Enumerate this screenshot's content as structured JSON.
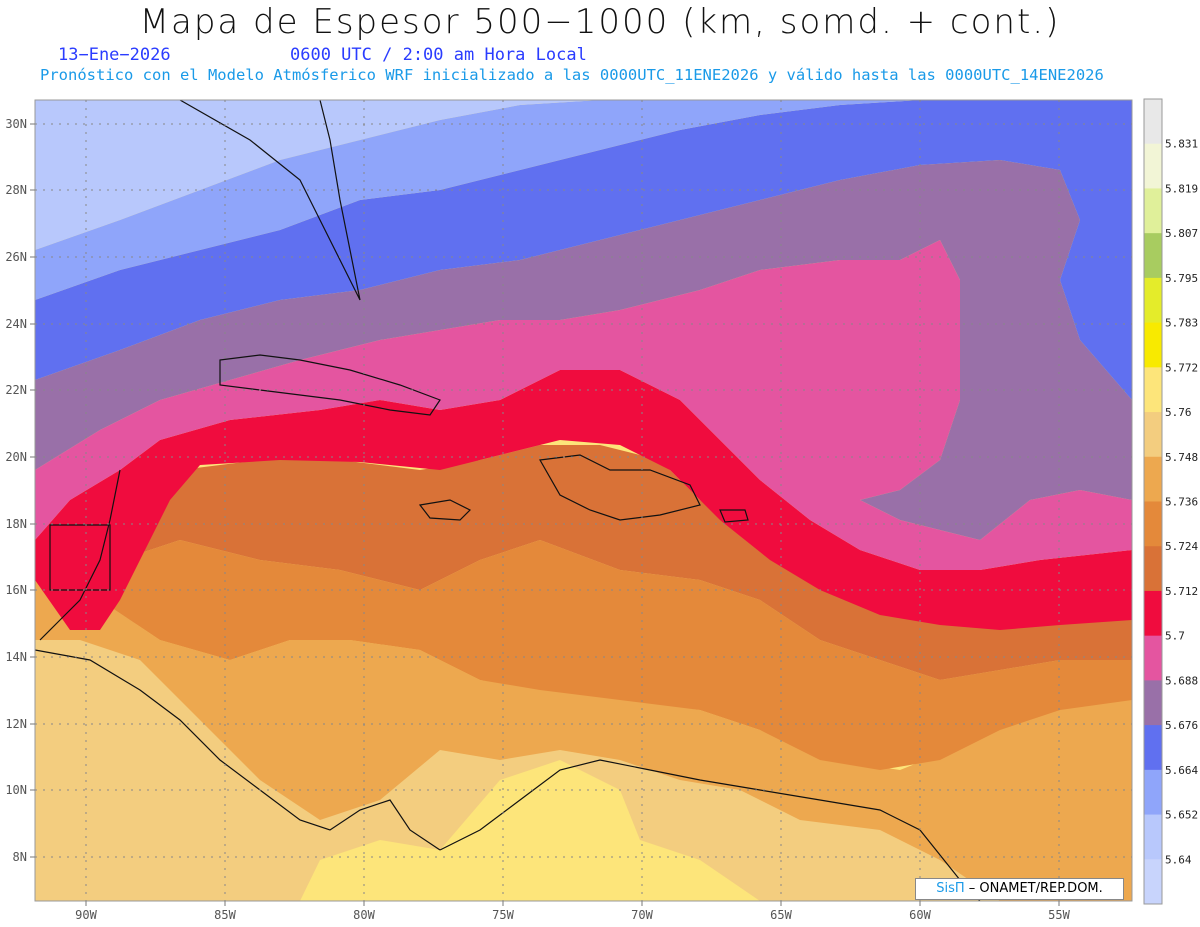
{
  "header": {
    "title": "Mapa de Espesor 500−1000 (km, somd. + cont.)",
    "date": "13−Ene−2026",
    "time": "0600 UTC / 2:00 am Hora Local",
    "forecast_line": "Pronóstico con el Modelo Atmósferico WRF inicializado a las 0000UTC_11ENE2026 y válido hasta las  0000UTC_14ENE2026"
  },
  "axes": {
    "lat_labels": [
      "30N",
      "28N",
      "26N",
      "24N",
      "22N",
      "20N",
      "18N",
      "16N",
      "14N",
      "12N",
      "10N",
      "8N"
    ],
    "lon_labels": [
      "90W",
      "85W",
      "80W",
      "75W",
      "70W",
      "65W",
      "60W",
      "55W"
    ]
  },
  "colorbar": {
    "labels": [
      "5.831",
      "5.819",
      "5.807",
      "5.795",
      "5.783",
      "5.772",
      "5.76",
      "5.748",
      "5.736",
      "5.724",
      "5.712",
      "5.7",
      "5.688",
      "5.676",
      "5.664",
      "5.652",
      "5.64"
    ],
    "colors": [
      "#e8e8e8",
      "#f2f5d6",
      "#e0f09a",
      "#a8cc60",
      "#e4ec2a",
      "#f8ea00",
      "#fde57a",
      "#f3cd7f",
      "#eda84f",
      "#e4893a",
      "#d97237",
      "#f00c3e",
      "#e455a0",
      "#9970a8",
      "#6070f0",
      "#8fa5fa",
      "#b8c8fc",
      "#c8d4fc"
    ]
  },
  "credit": {
    "brand": "SisΠ",
    "text": " – ONAMET/REP.DOM."
  }
}
